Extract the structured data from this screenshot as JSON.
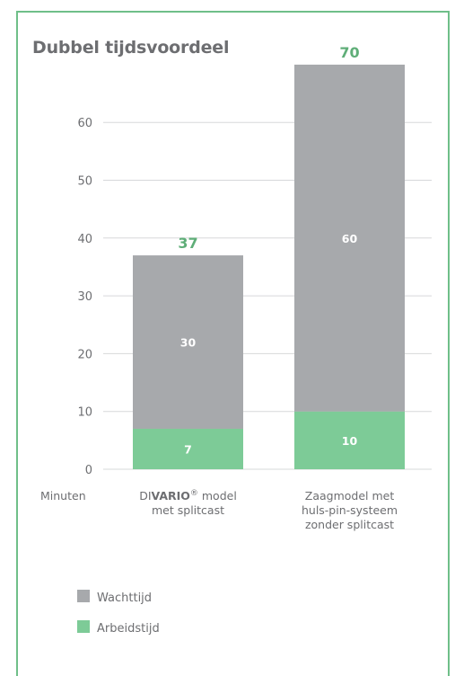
{
  "chart_data": {
    "type": "bar",
    "stacked": true,
    "title": "Dubbel tijdsvoordeel",
    "ylabel": "Minuten",
    "ylim": [
      0,
      70
    ],
    "yticks": [
      0,
      10,
      20,
      30,
      40,
      50,
      60
    ],
    "grid": true,
    "categories": [
      {
        "pre": "DI",
        "bold": "VARIO",
        "sup": "®",
        "post": " model",
        "line2": "met splitcast"
      },
      {
        "pre": "Zaagmodel met",
        "bold": "",
        "sup": "",
        "post": "",
        "line2": "huls-pin-systeem",
        "line3": "zonder splitcast"
      }
    ],
    "series": [
      {
        "name": "Arbeidstijd",
        "color": "#7dcb97",
        "values": [
          7,
          10
        ]
      },
      {
        "name": "Wachttijd",
        "color": "#a7a9ac",
        "values": [
          30,
          60
        ]
      }
    ],
    "totals": [
      37,
      70
    ],
    "legend": {
      "position": "bottom-left",
      "items": [
        {
          "name": "Wachttijd",
          "color": "#a7a9ac"
        },
        {
          "name": "Arbeidstijd",
          "color": "#7dcb97"
        }
      ]
    },
    "colors": {
      "frame": "#6fbf89",
      "grid": "#d7d8da",
      "text": "#6d6e71",
      "total": "#5fae78"
    }
  }
}
